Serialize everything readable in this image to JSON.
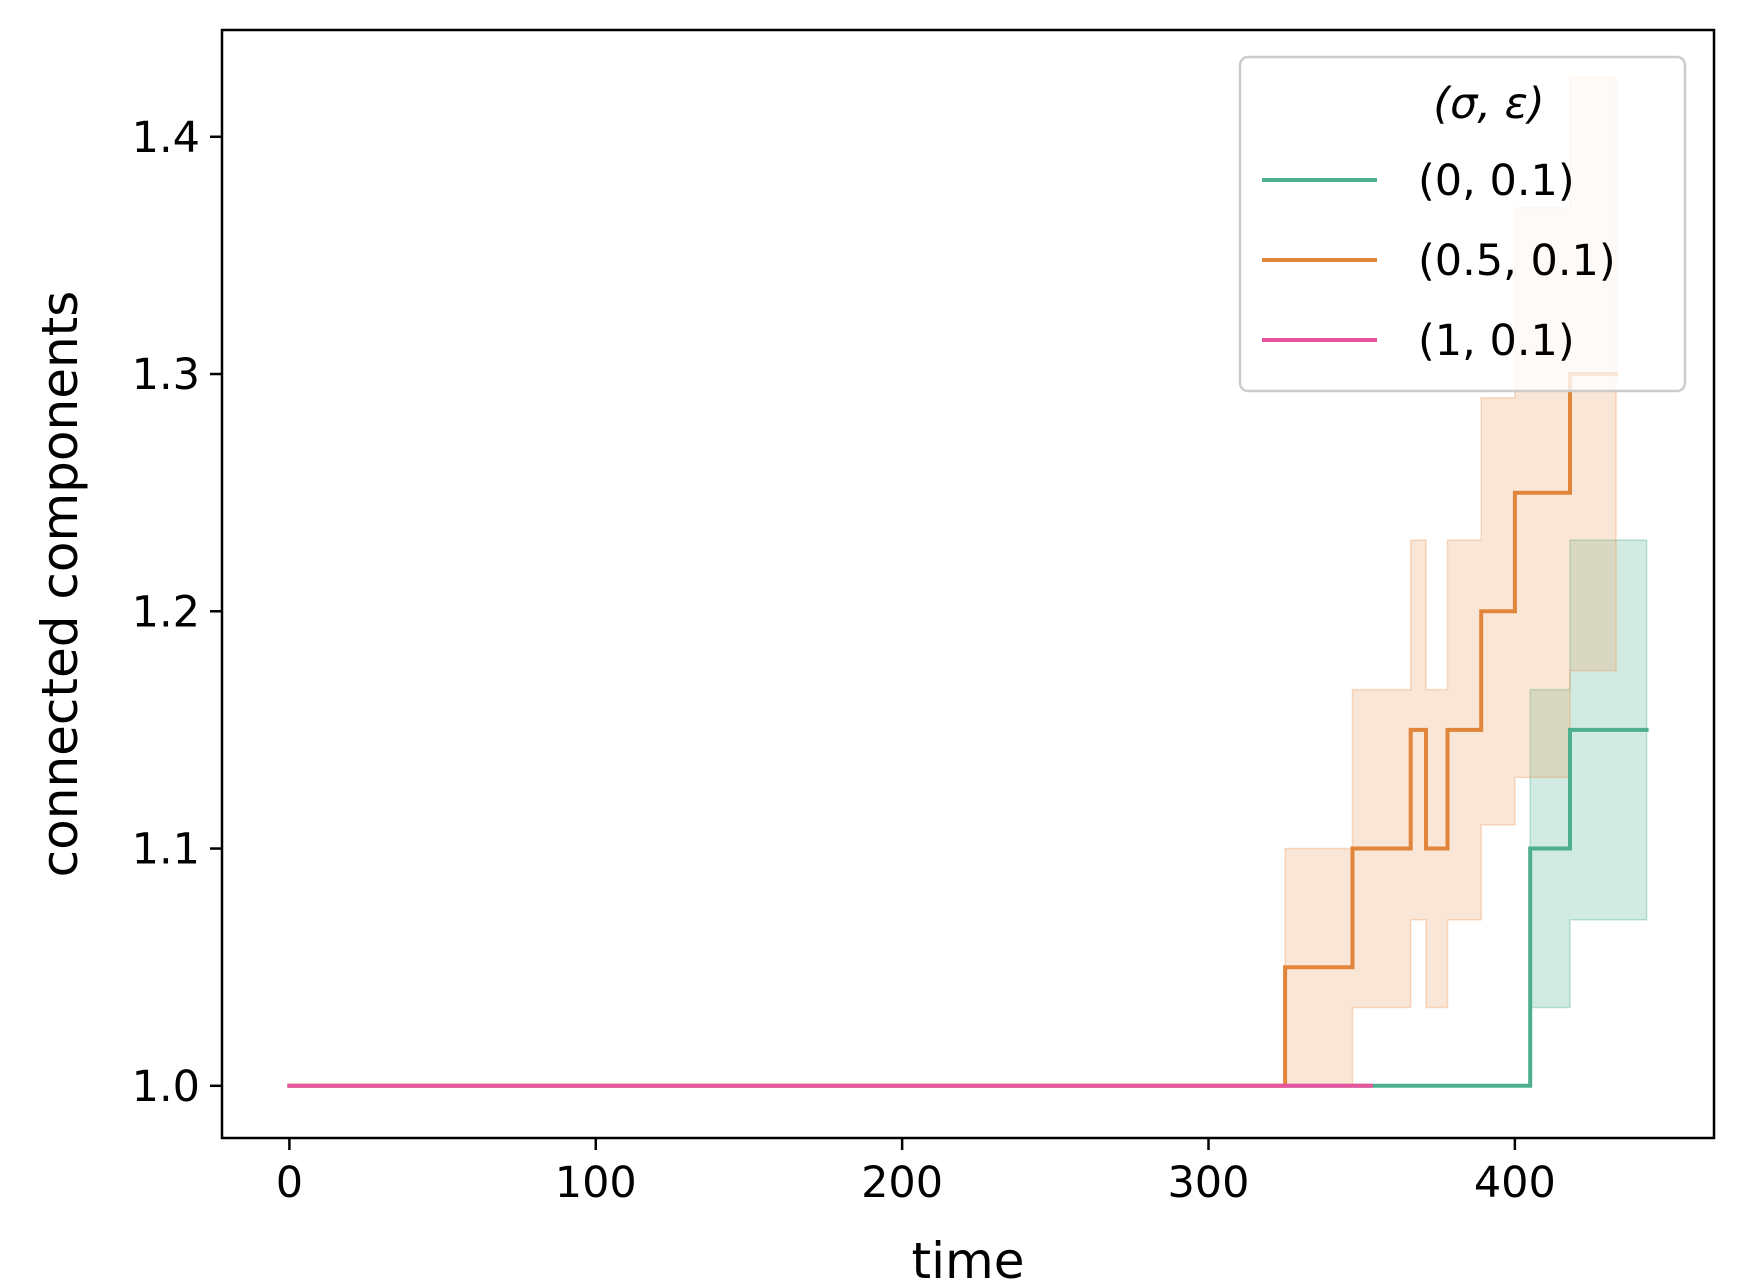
{
  "chart_data": {
    "type": "line",
    "title": "",
    "xlabel": "time",
    "ylabel": "connected components",
    "xlim": [
      -22,
      465
    ],
    "ylim": [
      0.978,
      1.445
    ],
    "xticks": [
      0,
      100,
      200,
      300,
      400
    ],
    "xtick_labels": [
      "0",
      "100",
      "200",
      "300",
      "400"
    ],
    "yticks": [
      1.0,
      1.1,
      1.2,
      1.3,
      1.4
    ],
    "ytick_labels": [
      "1.0",
      "1.1",
      "1.2",
      "1.3",
      "1.4"
    ],
    "legend": {
      "title": "(σ, ε)",
      "placement": "top-right"
    },
    "series": [
      {
        "name": "(0, 0.1)",
        "color": "#4daf8c",
        "band_color": "#4daf8c",
        "x": [
          0,
          405,
          405,
          418,
          418,
          443
        ],
        "y": [
          1.0,
          1.0,
          1.1,
          1.1,
          1.15,
          1.15
        ],
        "lower": [
          1.0,
          1.0,
          1.033,
          1.033,
          1.07,
          1.07
        ],
        "upper": [
          1.0,
          1.0,
          1.167,
          1.167,
          1.23,
          1.23
        ]
      },
      {
        "name": "(0.5, 0.1)",
        "color": "#e0853a",
        "band_color": "#eb9b5e",
        "x": [
          0,
          325,
          325,
          347,
          347,
          366,
          366,
          371,
          371,
          378,
          378,
          389,
          389,
          400,
          400,
          418,
          418,
          433
        ],
        "y": [
          1.0,
          1.0,
          1.05,
          1.05,
          1.1,
          1.1,
          1.15,
          1.15,
          1.1,
          1.1,
          1.15,
          1.15,
          1.2,
          1.2,
          1.25,
          1.25,
          1.3,
          1.3
        ],
        "lower": [
          1.0,
          1.0,
          1.0,
          1.0,
          1.033,
          1.033,
          1.07,
          1.07,
          1.033,
          1.033,
          1.07,
          1.07,
          1.11,
          1.11,
          1.13,
          1.13,
          1.175,
          1.175
        ],
        "upper": [
          1.0,
          1.0,
          1.1,
          1.1,
          1.167,
          1.167,
          1.23,
          1.23,
          1.167,
          1.167,
          1.23,
          1.23,
          1.29,
          1.29,
          1.37,
          1.37,
          1.425,
          1.425
        ]
      },
      {
        "name": "(1, 0.1)",
        "color": "#e8549e",
        "band_color": "#e8549e",
        "x": [
          0,
          353
        ],
        "y": [
          1.0,
          1.0
        ],
        "lower": [
          1.0,
          1.0
        ],
        "upper": [
          1.0,
          1.0
        ]
      }
    ]
  }
}
